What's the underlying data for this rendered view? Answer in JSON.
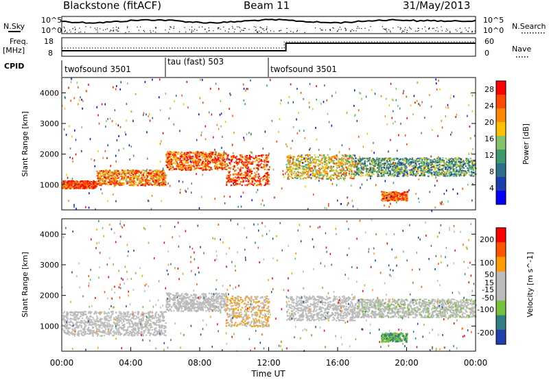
{
  "header": {
    "station": "Blackstone (fitACF)",
    "beam": "Beam 11",
    "date": "31/May/2013"
  },
  "noise_panel": {
    "left_label": "N.Sky",
    "right_label": "N.Search",
    "top_tick": "10^5",
    "bottom_tick": "10^0"
  },
  "freq_panel": {
    "left_label_line1": "Freq.",
    "left_label_line2": "[MHz]",
    "left_ticks": [
      "18",
      "8"
    ],
    "right_label": "Nave",
    "right_ticks": [
      "60",
      "0"
    ]
  },
  "cpid": {
    "label": "CPID",
    "segments": [
      {
        "name": "twofsound 3501",
        "start_hour": 0,
        "end_hour": 6
      },
      {
        "name": "tau (fast) 503",
        "start_hour": 6,
        "end_hour": 12
      },
      {
        "name": "twofsound 3501",
        "start_hour": 12,
        "end_hour": 24
      }
    ]
  },
  "chart_data": [
    {
      "type": "heatmap",
      "title": "Power",
      "xlabel": "Time UT",
      "ylabel": "Slant Range [km]",
      "x_ticks": [
        "00:00",
        "04:00",
        "08:00",
        "12:00",
        "16:00",
        "20:00",
        "00:00"
      ],
      "xlim_hours": [
        0,
        24
      ],
      "y_ticks": [
        "1000",
        "2000",
        "3000",
        "4000"
      ],
      "ylim": [
        180,
        4500
      ],
      "colorbar": {
        "label": "Power [dB]",
        "ticks": [
          "4",
          "8",
          "12",
          "16",
          "20",
          "24",
          "28"
        ],
        "range": [
          0,
          30
        ],
        "colors": [
          "#0000ff",
          "#1b3fb0",
          "#2e6f8a",
          "#3c9a6b",
          "#84c36b",
          "#ffc000",
          "#ff8800",
          "#ff4a00",
          "#ff0000"
        ]
      },
      "echo_bands": [
        {
          "from_hour": 0.0,
          "to_hour": 2.0,
          "range_km": [
            900,
            1150
          ],
          "power_db": 26
        },
        {
          "from_hour": 2.0,
          "to_hour": 6.0,
          "range_km": [
            1000,
            1500
          ],
          "power_db": 22
        },
        {
          "from_hour": 6.0,
          "to_hour": 9.5,
          "range_km": [
            1500,
            2100
          ],
          "power_db": 24
        },
        {
          "from_hour": 9.5,
          "to_hour": 12.0,
          "range_km": [
            1000,
            2000
          ],
          "power_db": 26
        },
        {
          "from_hour": 13.0,
          "to_hour": 17.0,
          "range_km": [
            1200,
            2000
          ],
          "power_db": 18
        },
        {
          "from_hour": 17.0,
          "to_hour": 24.0,
          "range_km": [
            1300,
            1900
          ],
          "power_db": 12
        },
        {
          "from_hour": 18.5,
          "to_hour": 20.0,
          "range_km": [
            500,
            800
          ],
          "power_db": 24
        }
      ]
    },
    {
      "type": "heatmap",
      "title": "Velocity",
      "xlabel": "Time UT",
      "ylabel": "Slant Range [km]",
      "x_ticks": [
        "00:00",
        "04:00",
        "08:00",
        "12:00",
        "16:00",
        "20:00",
        "00:00"
      ],
      "xlim_hours": [
        0,
        24
      ],
      "y_ticks": [
        "1000",
        "2000",
        "3000",
        "4000"
      ],
      "ylim": [
        180,
        4500
      ],
      "colorbar": {
        "label": "Velocity [m s^-1]",
        "ticks": [
          "200",
          "100",
          "50",
          "15",
          "-15",
          "-50",
          "-100",
          "-200"
        ],
        "range": [
          -250,
          250
        ],
        "colors": [
          "#1f3fae",
          "#2f7f84",
          "#77c23d",
          "#bbbbbb",
          "#bbbbbb",
          "#ff9a00",
          "#ff5500",
          "#ff0000"
        ]
      },
      "echo_bands": [
        {
          "from_hour": 0.0,
          "to_hour": 6.0,
          "range_km": [
            700,
            1500
          ],
          "velocity": 0
        },
        {
          "from_hour": 6.0,
          "to_hour": 9.5,
          "range_km": [
            1500,
            2100
          ],
          "velocity": 0
        },
        {
          "from_hour": 9.5,
          "to_hour": 12.0,
          "range_km": [
            1000,
            2000
          ],
          "velocity": 60
        },
        {
          "from_hour": 13.0,
          "to_hour": 17.0,
          "range_km": [
            1200,
            2000
          ],
          "velocity": 0
        },
        {
          "from_hour": 17.0,
          "to_hour": 24.0,
          "range_km": [
            1300,
            1900
          ],
          "velocity": -20
        },
        {
          "from_hour": 18.5,
          "to_hour": 20.0,
          "range_km": [
            500,
            800
          ],
          "velocity": -120
        }
      ]
    }
  ]
}
